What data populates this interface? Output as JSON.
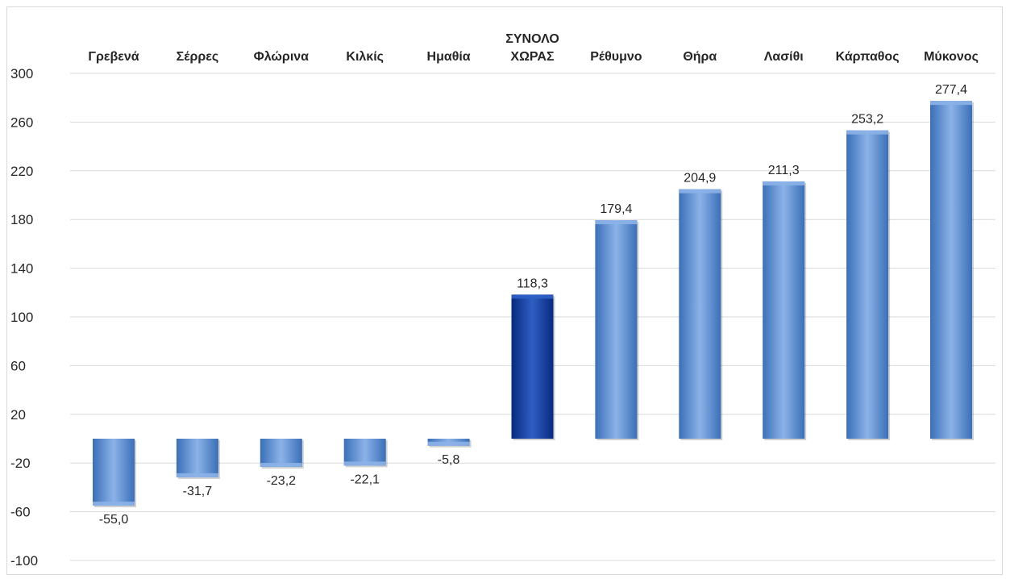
{
  "chart_data": {
    "type": "bar",
    "title": "",
    "xlabel": "",
    "ylabel": "",
    "ylim": [
      -100,
      300
    ],
    "yticks": [
      300,
      260,
      220,
      180,
      140,
      100,
      60,
      20,
      -20,
      -60,
      -100
    ],
    "grid": true,
    "legend": "none",
    "categories": [
      [
        "Γρεβενά"
      ],
      [
        "Σέρρες"
      ],
      [
        "Φλώρινα"
      ],
      [
        "Κιλκίς"
      ],
      [
        "Ημαθία"
      ],
      [
        "ΣΥΝΟΛΟ",
        "ΧΩΡΑΣ"
      ],
      [
        "Ρέθυμνο"
      ],
      [
        "Θήρα"
      ],
      [
        "Λασίθι"
      ],
      [
        "Κάρπαθος"
      ],
      [
        "Μύκονος"
      ]
    ],
    "values": [
      -55.0,
      -31.7,
      -23.2,
      -22.1,
      -5.8,
      118.3,
      179.4,
      204.9,
      211.3,
      253.2,
      277.4
    ],
    "data_labels": [
      "-55,0",
      "-31,7",
      "-23,2",
      "-22,1",
      "-5,8",
      "118,3",
      "179,4",
      "204,9",
      "211,3",
      "253,2",
      "277,4"
    ],
    "highlight_index": 5,
    "colors": {
      "bar": "#5b8fd6",
      "bar_light": "#8cb3e8",
      "bar_dark": "#3a6fb8",
      "highlight": "#0b3aa3",
      "highlight_light": "#2f5fc4",
      "highlight_dark": "#072a7e",
      "grid": "#d9d9d9",
      "text": "#262626"
    }
  }
}
